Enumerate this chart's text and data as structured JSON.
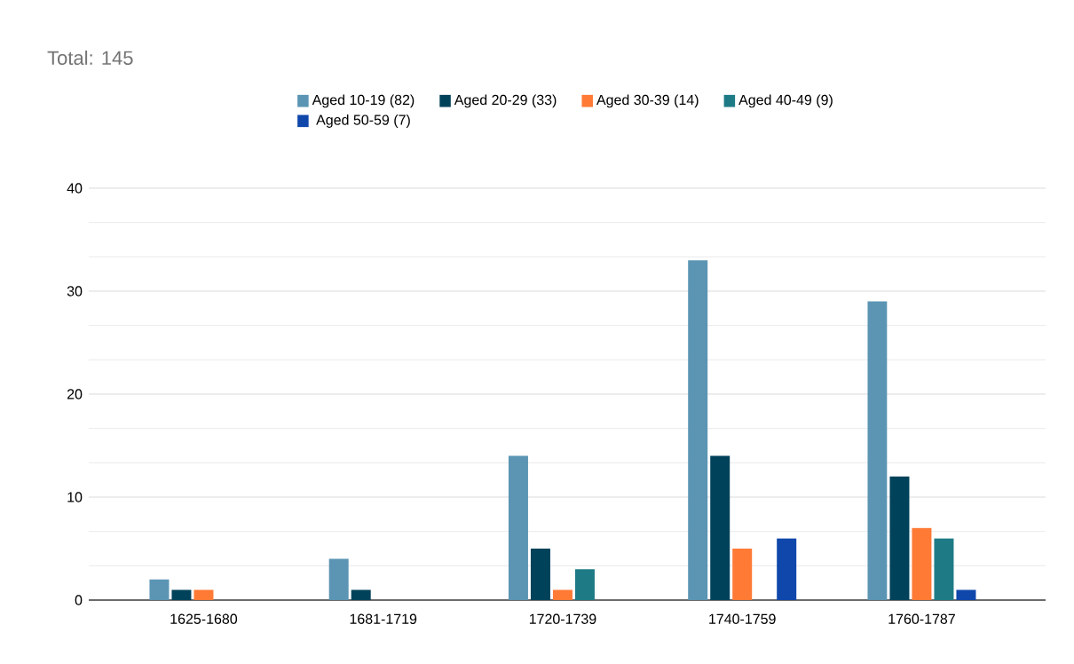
{
  "chart_data": {
    "type": "bar",
    "title": "Total: 145",
    "categories": [
      "1625-1680",
      "1681-1719",
      "1720-1739",
      "1740-1759",
      "1760-1787"
    ],
    "series": [
      {
        "name": "Aged 10-19 (82)",
        "color": "#5b95b3",
        "values": [
          2,
          4,
          14,
          33,
          29
        ]
      },
      {
        "name": "Aged 20-29 (33)",
        "color": "#00425a",
        "values": [
          1,
          1,
          5,
          14,
          12
        ]
      },
      {
        "name": "Aged 30-39 (14)",
        "color": "#ff7a35",
        "values": [
          1,
          0,
          1,
          5,
          7
        ]
      },
      {
        "name": "Aged 40-49 (9)",
        "color": "#1e7b86",
        "values": [
          0,
          0,
          3,
          0,
          6
        ]
      },
      {
        "name": "Aged 50-59 (7)",
        "color": "#0f47ab",
        "values": [
          0,
          0,
          0,
          6,
          1
        ]
      }
    ],
    "ylim": [
      0,
      40
    ],
    "yticks": [
      0,
      10,
      20,
      30,
      40
    ],
    "grid": "y",
    "legend": "top"
  }
}
